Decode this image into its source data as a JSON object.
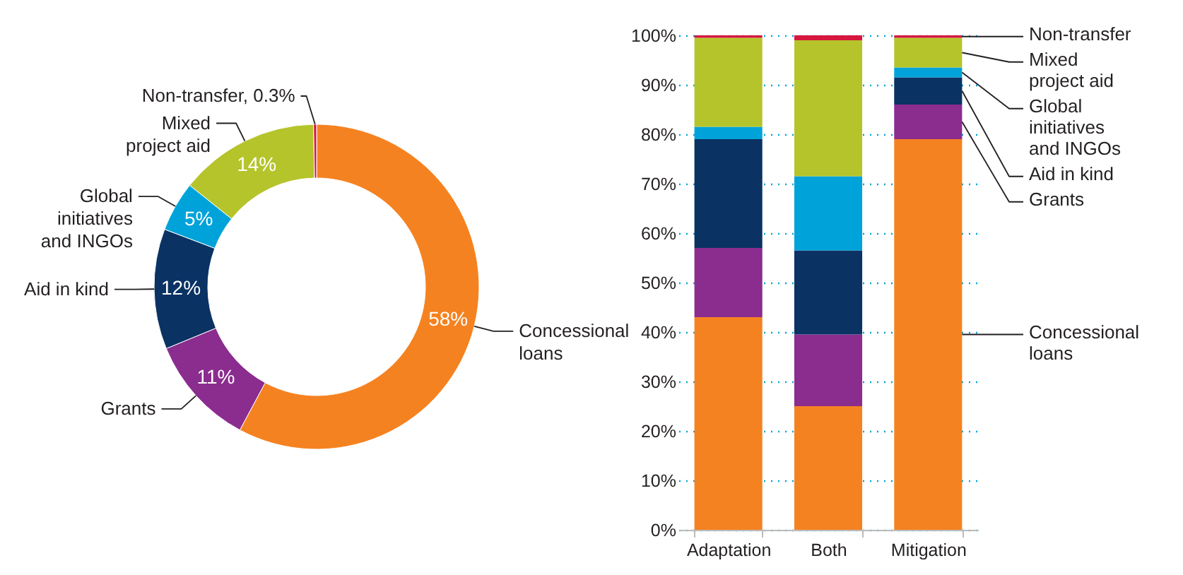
{
  "chart_data": [
    {
      "type": "donut",
      "categories": [
        "Concessional loans",
        "Grants",
        "Aid in kind",
        "Global initiatives and INGOs",
        "Mixed project aid",
        "Non-transfer"
      ],
      "values": [
        58,
        11,
        12,
        5,
        14,
        0.3
      ],
      "colors": [
        "#f58220",
        "#8b2c8f",
        "#0a3263",
        "#00a3d9",
        "#b5c42a",
        "#d6173f"
      ],
      "value_labels": [
        "58%",
        "11%",
        "12%",
        "5%",
        "14%",
        "0.3%"
      ]
    },
    {
      "type": "bar",
      "stacked": true,
      "categories": [
        "Adaptation",
        "Both",
        "Mitigation"
      ],
      "series": [
        {
          "name": "Concessional loans",
          "color": "#f58220",
          "values": [
            43,
            25,
            79
          ]
        },
        {
          "name": "Grants",
          "color": "#8b2c8f",
          "values": [
            14,
            14.5,
            7
          ]
        },
        {
          "name": "Aid in kind",
          "color": "#0a3263",
          "values": [
            22,
            17,
            5.5
          ]
        },
        {
          "name": "Global initiatives and INGOs",
          "color": "#00a3d9",
          "values": [
            2.5,
            15,
            2
          ]
        },
        {
          "name": "Mixed project aid",
          "color": "#b5c42a",
          "values": [
            18,
            27.5,
            6
          ]
        },
        {
          "name": "Non-transfer",
          "color": "#d6173f",
          "values": [
            0.5,
            1,
            0.5
          ]
        }
      ],
      "ylim": [
        0,
        100
      ],
      "yticks": [
        {
          "value": 0,
          "label": "0%"
        },
        {
          "value": 10,
          "label": "10%"
        },
        {
          "value": 20,
          "label": "20%"
        },
        {
          "value": 30,
          "label": "30%"
        },
        {
          "value": 40,
          "label": "40%"
        },
        {
          "value": 50,
          "label": "50%"
        },
        {
          "value": 60,
          "label": "60%"
        },
        {
          "value": 70,
          "label": "70%"
        },
        {
          "value": 80,
          "label": "80%"
        },
        {
          "value": 90,
          "label": "90%"
        },
        {
          "value": 100,
          "label": "100%"
        }
      ],
      "grid": "y",
      "legend": "right"
    }
  ]
}
